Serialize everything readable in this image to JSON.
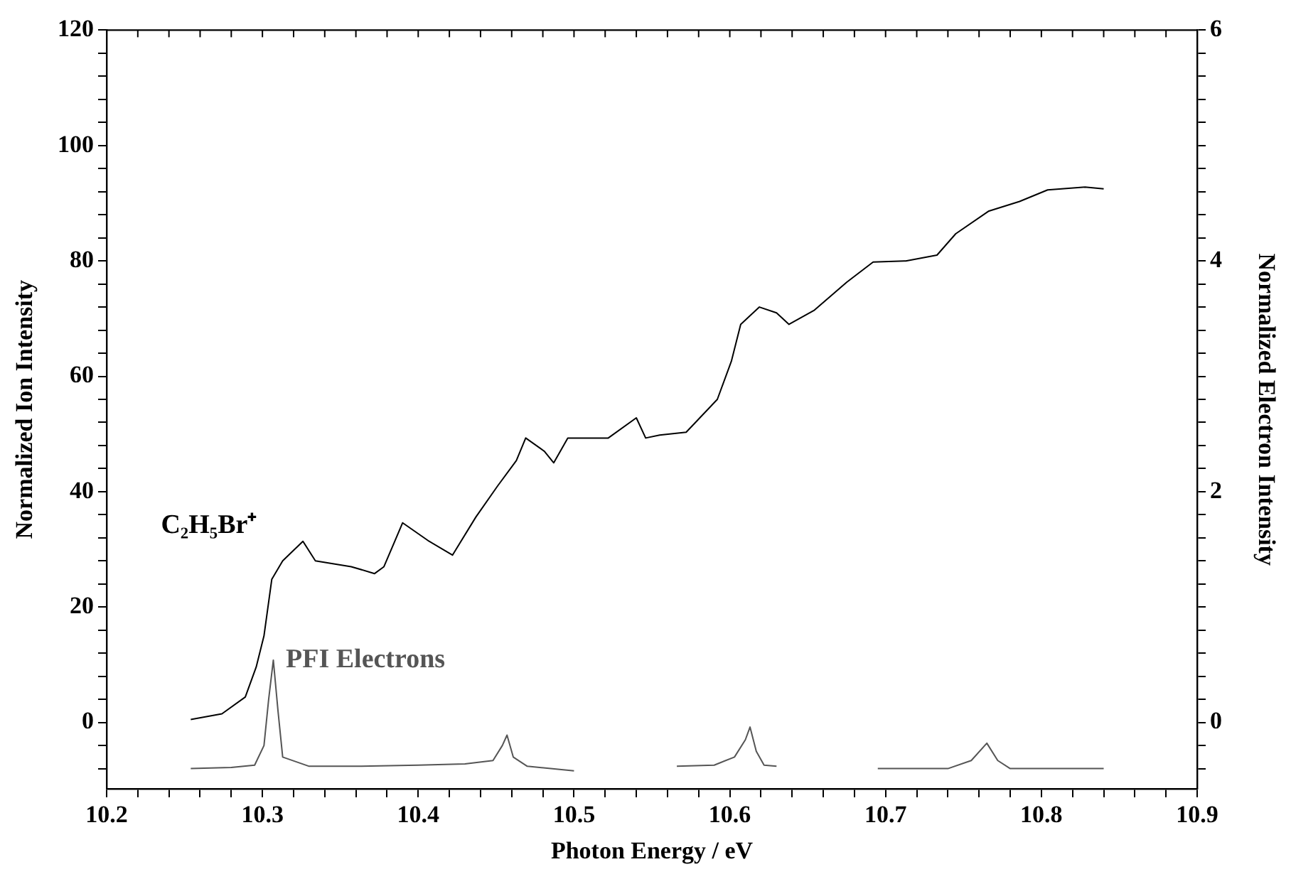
{
  "chart_data": {
    "type": "line",
    "xlabel": "Photon Energy / eV",
    "ylabel": "Normalized Ion Intensity",
    "y2label": "Normalized Electron Intensity",
    "xlim": [
      10.2,
      10.9
    ],
    "ylim": [
      -11.5,
      120
    ],
    "y2lim": [
      -0.575,
      6
    ],
    "xticks": [
      10.2,
      {
        "value": 10.22,
        "label": null
      },
      {
        "value": 10.24,
        "label": null
      },
      {
        "value": 10.26,
        "label": null
      },
      {
        "value": 10.28,
        "label": null
      },
      10.3,
      {
        "value": 10.32,
        "label": null
      },
      {
        "value": 10.34,
        "label": null
      },
      {
        "value": 10.36,
        "label": null
      },
      {
        "value": 10.38,
        "label": null
      },
      10.4,
      {
        "value": 10.42,
        "label": null
      },
      {
        "value": 10.44,
        "label": null
      },
      {
        "value": 10.46,
        "label": null
      },
      {
        "value": 10.48,
        "label": null
      },
      10.5,
      {
        "value": 10.52,
        "label": null
      },
      {
        "value": 10.54,
        "label": null
      },
      {
        "value": 10.56,
        "label": null
      },
      {
        "value": 10.58,
        "label": null
      },
      10.6,
      {
        "value": 10.62,
        "label": null
      },
      {
        "value": 10.64,
        "label": null
      },
      {
        "value": 10.66,
        "label": null
      },
      {
        "value": 10.68,
        "label": null
      },
      10.7,
      {
        "value": 10.72,
        "label": null
      },
      {
        "value": 10.74,
        "label": null
      },
      {
        "value": 10.76,
        "label": null
      },
      {
        "value": 10.78,
        "label": null
      },
      10.8,
      {
        "value": 10.82,
        "label": null
      },
      {
        "value": 10.84,
        "label": null
      },
      {
        "value": 10.86,
        "label": null
      },
      {
        "value": 10.88,
        "label": null
      },
      10.9
    ],
    "yticks": [
      {
        "value": -8,
        "label": null
      },
      {
        "value": -4,
        "label": null
      },
      0,
      {
        "value": 4,
        "label": null
      },
      {
        "value": 8,
        "label": null
      },
      {
        "value": 12,
        "label": null
      },
      {
        "value": 16,
        "label": null
      },
      20,
      {
        "value": 24,
        "label": null
      },
      {
        "value": 28,
        "label": null
      },
      {
        "value": 32,
        "label": null
      },
      {
        "value": 36,
        "label": null
      },
      40,
      {
        "value": 44,
        "label": null
      },
      {
        "value": 48,
        "label": null
      },
      {
        "value": 52,
        "label": null
      },
      {
        "value": 56,
        "label": null
      },
      60,
      {
        "value": 64,
        "label": null
      },
      {
        "value": 68,
        "label": null
      },
      {
        "value": 72,
        "label": null
      },
      {
        "value": 76,
        "label": null
      },
      80,
      {
        "value": 84,
        "label": null
      },
      {
        "value": 88,
        "label": null
      },
      {
        "value": 92,
        "label": null
      },
      {
        "value": 96,
        "label": null
      },
      100,
      {
        "value": 104,
        "label": null
      },
      {
        "value": 108,
        "label": null
      },
      {
        "value": 112,
        "label": null
      },
      {
        "value": 116,
        "label": null
      },
      120
    ],
    "y2ticks": [
      {
        "value": -0.4,
        "label": null
      },
      {
        "value": -0.2,
        "label": null
      },
      0,
      {
        "value": 0.2,
        "label": null
      },
      {
        "value": 0.4,
        "label": null
      },
      {
        "value": 0.6,
        "label": null
      },
      {
        "value": 0.8,
        "label": null
      },
      {
        "value": 1,
        "label": null
      },
      {
        "value": 1.2,
        "label": null
      },
      {
        "value": 1.4,
        "label": null
      },
      {
        "value": 1.6,
        "label": null
      },
      {
        "value": 1.8,
        "label": null
      },
      2,
      {
        "value": 2.2,
        "label": null
      },
      {
        "value": 2.4,
        "label": null
      },
      {
        "value": 2.6,
        "label": null
      },
      {
        "value": 2.8,
        "label": null
      },
      {
        "value": 3,
        "label": null
      },
      {
        "value": 3.2,
        "label": null
      },
      {
        "value": 3.4,
        "label": null
      },
      {
        "value": 3.6,
        "label": null
      },
      {
        "value": 3.8,
        "label": null
      },
      4,
      {
        "value": 4.2,
        "label": null
      },
      {
        "value": 4.4,
        "label": null
      },
      {
        "value": 4.6,
        "label": null
      },
      {
        "value": 4.8,
        "label": null
      },
      {
        "value": 5,
        "label": null
      },
      {
        "value": 5.2,
        "label": null
      },
      {
        "value": 5.4,
        "label": null
      },
      {
        "value": 5.6,
        "label": null
      },
      {
        "value": 5.8,
        "label": null
      },
      6
    ],
    "grid": false,
    "legend": false,
    "marker": "none",
    "line_style": "solid",
    "series": [
      {
        "name": "C₂H₅Br⁺",
        "color": "#000000",
        "x": [
          10.254,
          10.274,
          10.289,
          10.296,
          10.301,
          10.306,
          10.313,
          10.326,
          10.334,
          10.357,
          10.372,
          10.378,
          10.39,
          10.407,
          10.422,
          10.437,
          10.451,
          10.463,
          10.469,
          10.481,
          10.487,
          10.496,
          10.51,
          10.522,
          10.54,
          10.546,
          10.555,
          10.572,
          10.592,
          10.601,
          10.607,
          10.619,
          10.63,
          10.638,
          10.654,
          10.675,
          10.692,
          10.713,
          10.733,
          10.745,
          10.766,
          10.786,
          10.804,
          10.828,
          10.84
        ],
        "values": [
          0.5,
          1.5,
          4.4,
          9.6,
          15,
          24.8,
          28,
          31.4,
          28,
          27,
          25.8,
          27,
          34.6,
          31.4,
          29,
          35.6,
          41,
          45.4,
          49.3,
          47,
          45,
          49.3,
          49.3,
          49.3,
          52.8,
          49.3,
          49.8,
          50.3,
          56,
          62.6,
          69,
          72,
          71,
          69,
          71.4,
          76.3,
          79.8,
          80,
          81,
          84.7,
          88.6,
          90.3,
          92.3,
          92.8,
          92.5
        ]
      },
      {
        "name": "PFI Electrons",
        "color": "#555555",
        "axis": "y2",
        "x": [
          10.254,
          10.28,
          10.295,
          10.301,
          10.304,
          10.307,
          10.31,
          10.313,
          10.33,
          10.36,
          10.4,
          10.43,
          10.448,
          10.454,
          10.457,
          10.461,
          10.47,
          10.5,
          10.53,
          10.566,
          10.59,
          10.603,
          10.61,
          10.613,
          10.617,
          10.622,
          10.63,
          10.66,
          10.695,
          10.74,
          10.755,
          10.765,
          10.772,
          10.78,
          10.84
        ],
        "values": [
          -0.4,
          -0.39,
          -0.37,
          -0.2,
          0.2,
          0.54,
          0.1,
          -0.3,
          -0.38,
          -0.38,
          -0.37,
          -0.36,
          -0.33,
          -0.2,
          -0.11,
          -0.3,
          -0.38,
          -0.42,
          null,
          -0.38,
          -0.37,
          -0.3,
          -0.15,
          -0.04,
          -0.25,
          -0.37,
          -0.38,
          null,
          -0.4,
          -0.4,
          -0.33,
          -0.18,
          -0.33,
          -0.4,
          -0.4
        ]
      }
    ]
  }
}
